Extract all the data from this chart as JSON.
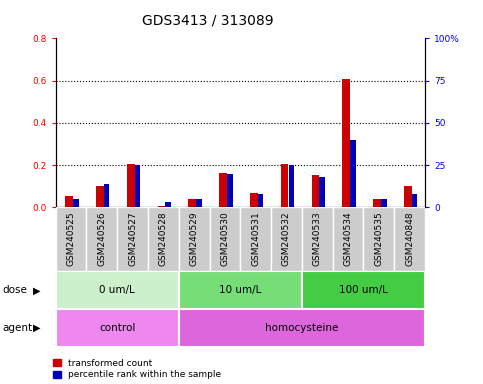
{
  "title": "GDS3413 / 313089",
  "samples": [
    "GSM240525",
    "GSM240526",
    "GSM240527",
    "GSM240528",
    "GSM240529",
    "GSM240530",
    "GSM240531",
    "GSM240532",
    "GSM240533",
    "GSM240534",
    "GSM240535",
    "GSM240848"
  ],
  "red_values": [
    0.055,
    0.1,
    0.205,
    0.005,
    0.04,
    0.165,
    0.07,
    0.205,
    0.155,
    0.61,
    0.04,
    0.1
  ],
  "blue_pct": [
    5,
    14,
    25,
    3,
    5,
    20,
    8,
    25,
    18,
    40,
    5,
    8
  ],
  "ylim_left": [
    0,
    0.8
  ],
  "ylim_right": [
    0,
    100
  ],
  "yticks_left": [
    0.0,
    0.2,
    0.4,
    0.6,
    0.8
  ],
  "yticks_right": [
    0,
    25,
    50,
    75,
    100
  ],
  "ytick_labels_right": [
    "0",
    "25",
    "50",
    "75",
    "100%"
  ],
  "dose_groups": [
    {
      "label": "0 um/L",
      "start": 0,
      "end": 4,
      "color": "#ccf0cc"
    },
    {
      "label": "10 um/L",
      "start": 4,
      "end": 8,
      "color": "#77dd77"
    },
    {
      "label": "100 um/L",
      "start": 8,
      "end": 12,
      "color": "#44cc44"
    }
  ],
  "agent_groups": [
    {
      "label": "control",
      "start": 0,
      "end": 4,
      "color": "#ee88ee"
    },
    {
      "label": "homocysteine",
      "start": 4,
      "end": 12,
      "color": "#dd66dd"
    }
  ],
  "dose_label": "dose",
  "agent_label": "agent",
  "red_color": "#cc0000",
  "blue_color": "#0000bb",
  "bar_bg": "#cccccc",
  "legend_red": "transformed count",
  "legend_blue": "percentile rank within the sample",
  "title_fontsize": 10,
  "tick_fontsize": 6.5,
  "label_fontsize": 7.5
}
